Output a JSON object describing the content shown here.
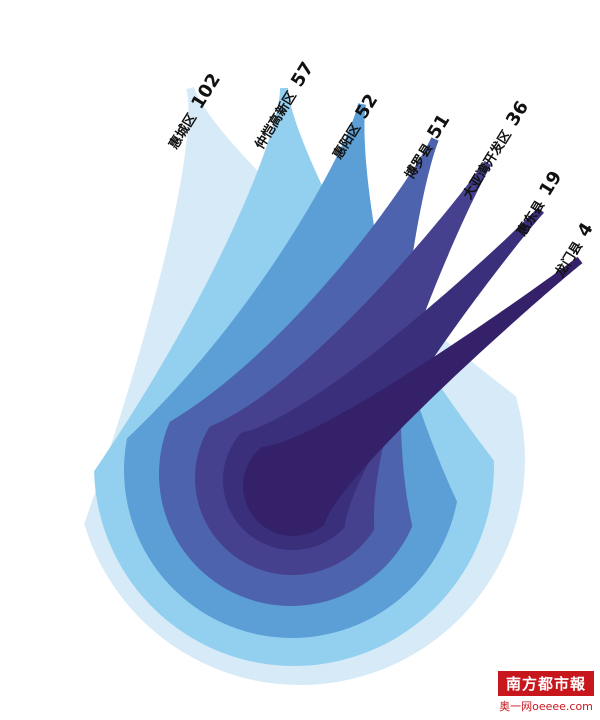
{
  "chart_data": {
    "type": "bar",
    "title": "",
    "categories": [
      "惠城区",
      "仲恺高新区",
      "惠阳区",
      "博罗县",
      "大亚湾开发区",
      "惠东县",
      "龙门县"
    ],
    "values": [
      102,
      57,
      52,
      51,
      36,
      19,
      4
    ],
    "colors": [
      "#d6eaf8",
      "#93d0f0",
      "#5b9fd6",
      "#4e63ad",
      "#45418e",
      "#3a2f7a",
      "#35216a"
    ],
    "xlabel": "",
    "ylabel": ""
  },
  "logo": {
    "name": "南方都市報",
    "site": "奥一网oeeee.com"
  }
}
